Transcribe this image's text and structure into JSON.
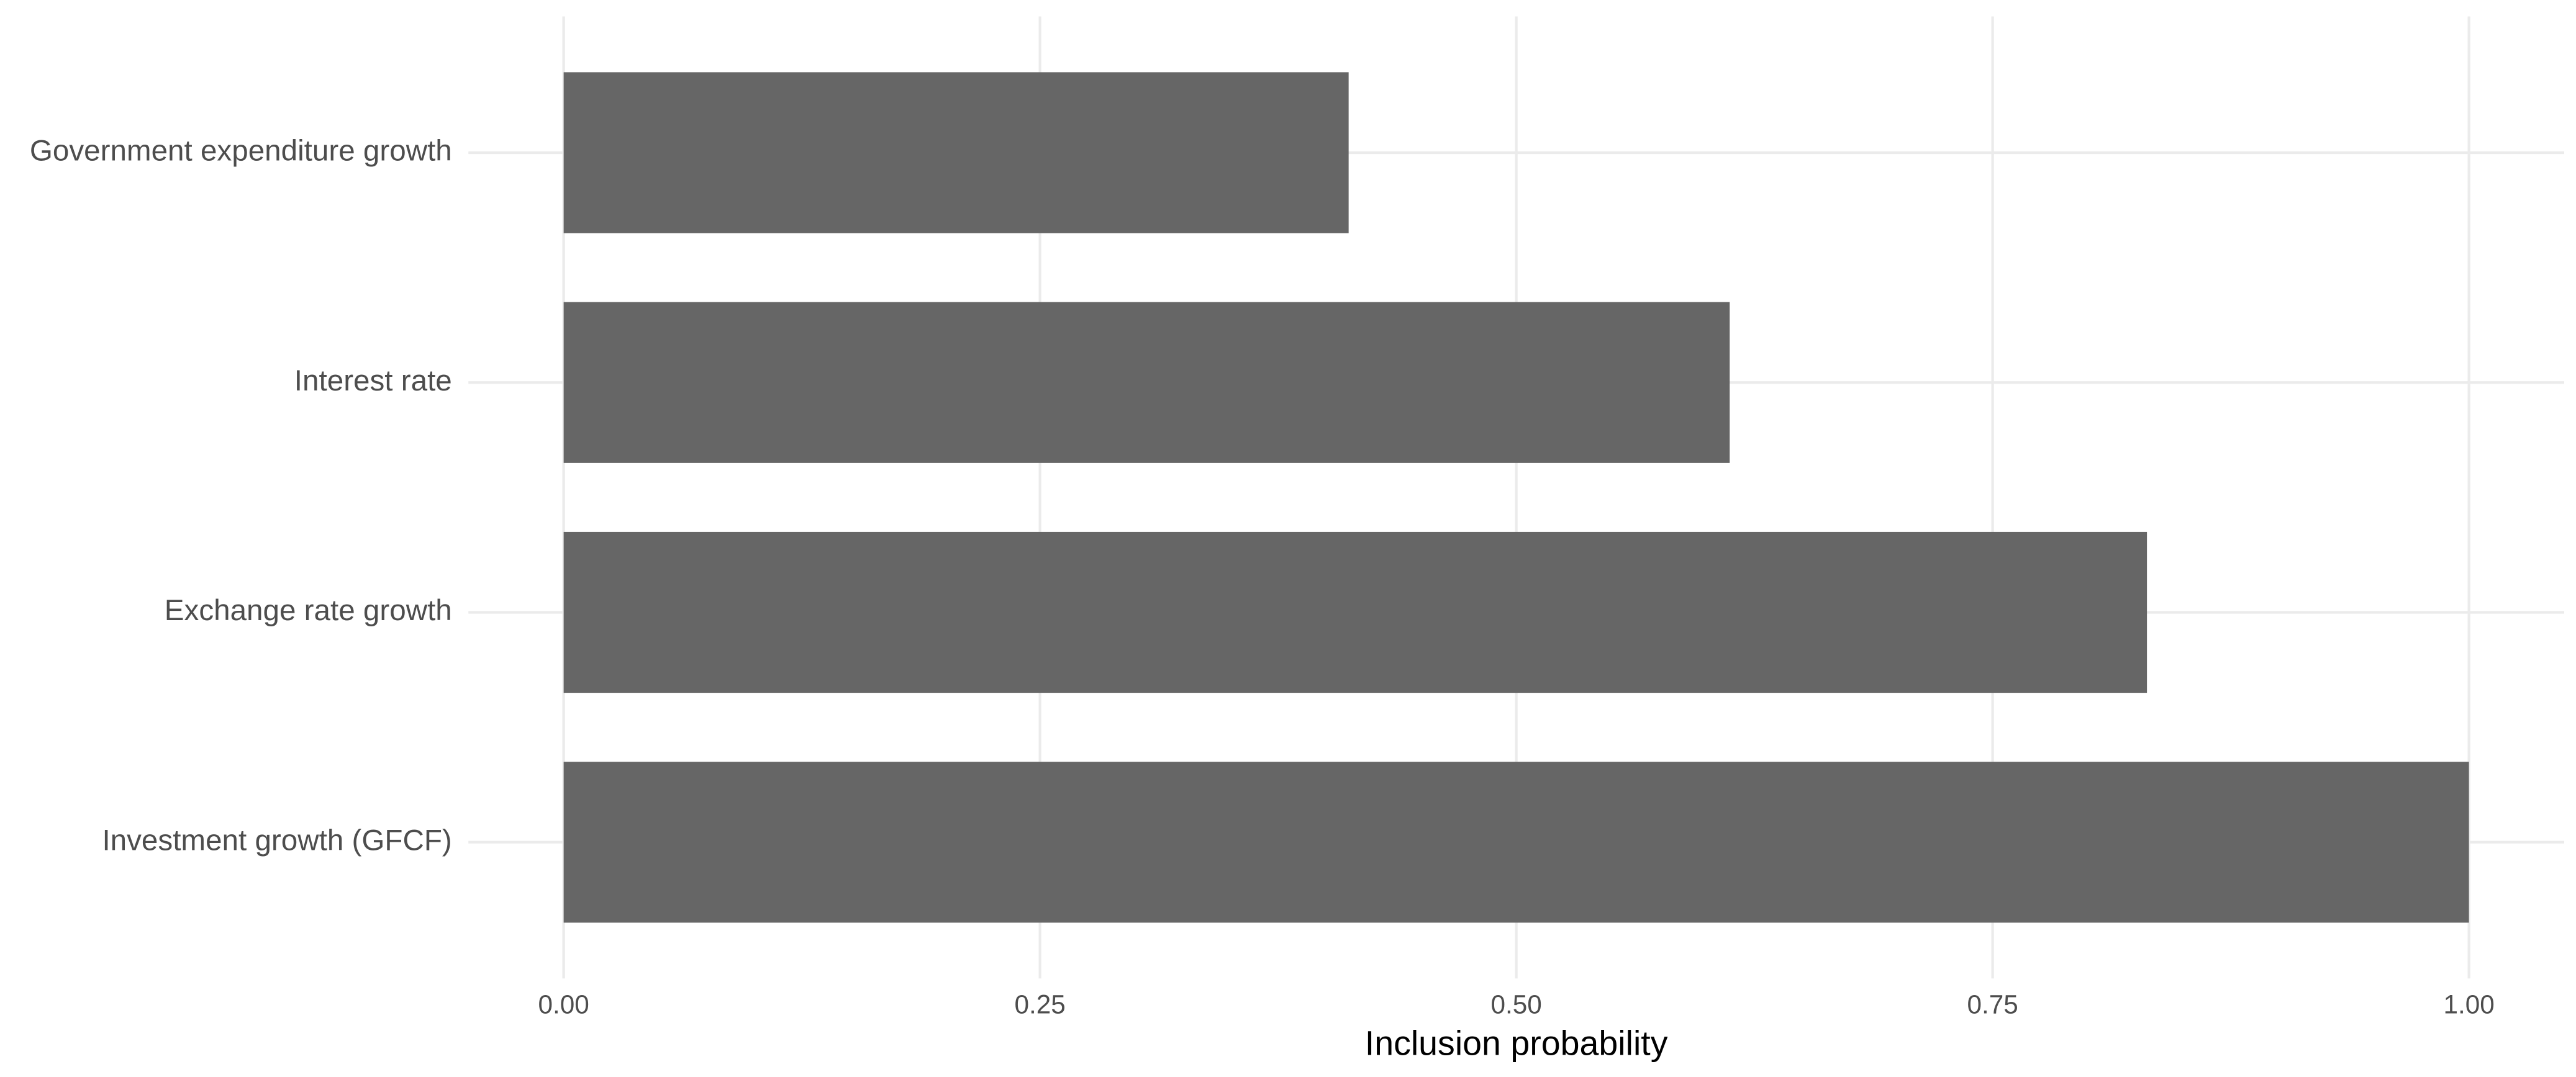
{
  "chart_data": {
    "type": "hbar",
    "x_label": "Inclusion probability",
    "categories": [
      "Government expenditure growth",
      "Interest rate",
      "Exchange rate growth",
      "Investment growth (GFCF)"
    ],
    "values": [
      0.412,
      0.612,
      0.831,
      1.0
    ],
    "color": "#666666",
    "xlim": [
      -0.05,
      1.05
    ],
    "xticks": [
      {
        "value": 0,
        "label": "0.00"
      },
      {
        "value": 0.25,
        "label": "0.25"
      },
      {
        "value": 0.5,
        "label": "0.50"
      },
      {
        "value": 0.75,
        "label": "0.75"
      },
      {
        "value": 1,
        "label": "1.00"
      }
    ],
    "grid": true
  }
}
